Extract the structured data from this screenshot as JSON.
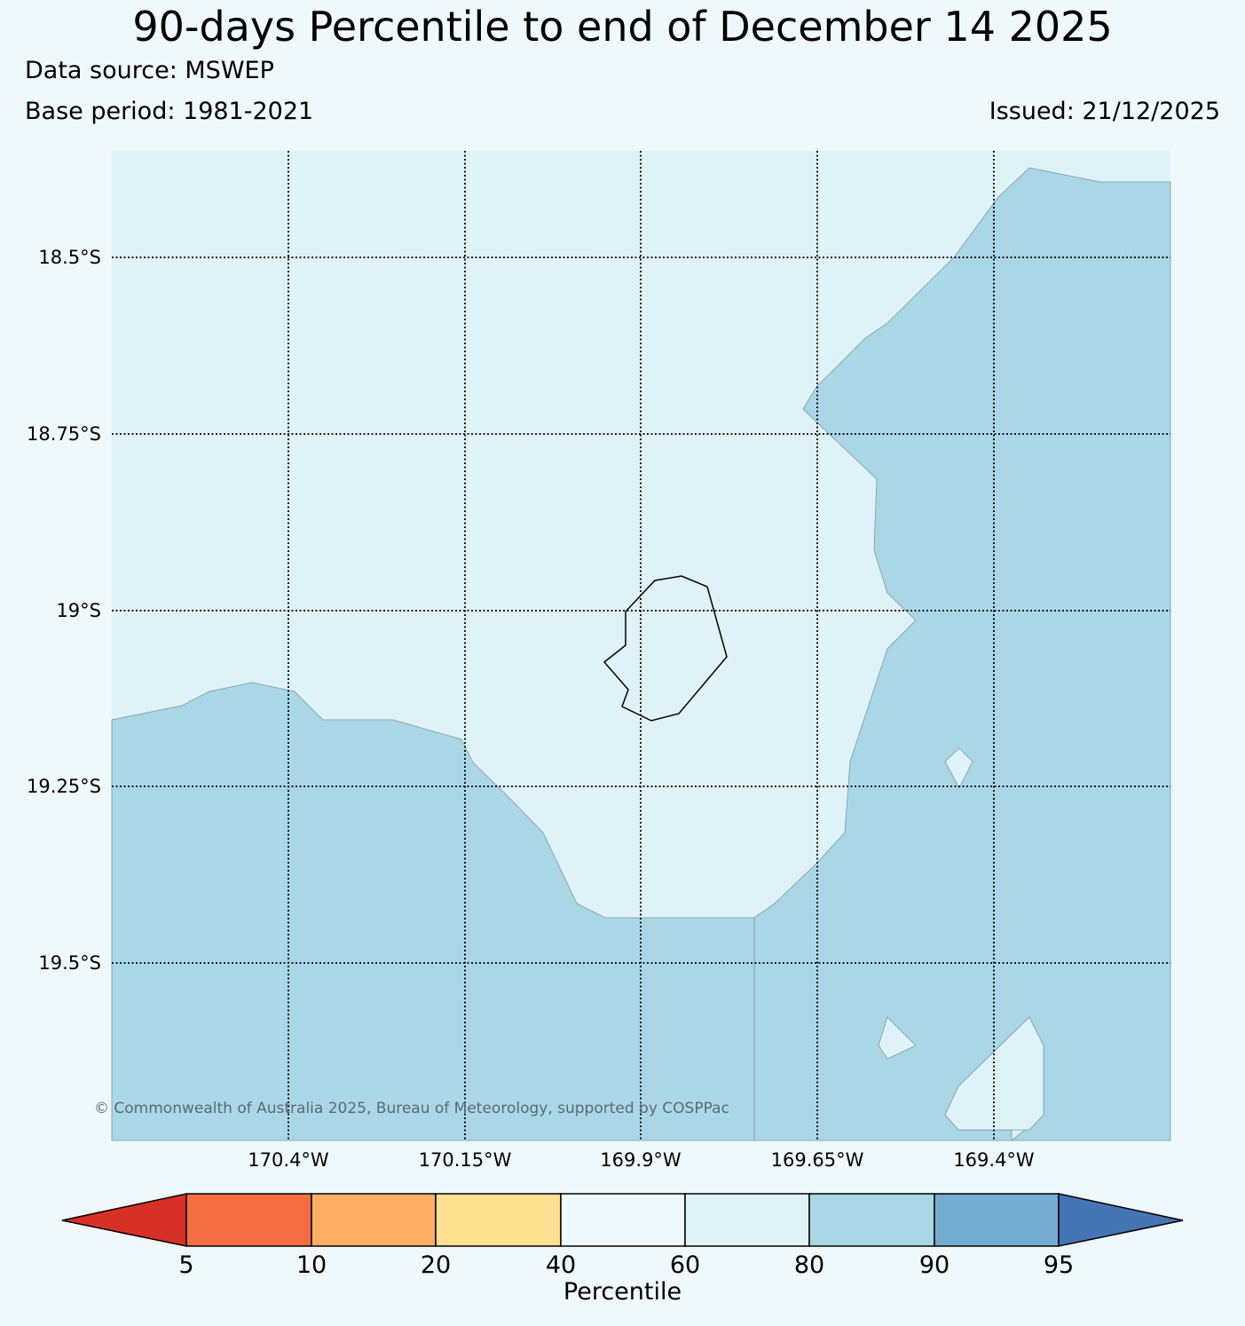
{
  "title": "90-days Percentile to end of December 14 2025",
  "data_source": "Data source: MSWEP",
  "base_period": "Base period: 1981-2021",
  "issued": "Issued: 21/12/2025",
  "copyright": "© Commonwealth of Australia 2025, Bureau of Meteorology, supported by COSPPac",
  "map": {
    "lat_labels": [
      "18.5°S",
      "18.75°S",
      "19°S",
      "19.25°S",
      "19.5°S"
    ],
    "lon_labels": [
      "170.4°W",
      "170.15°W",
      "169.9°W",
      "169.65°W",
      "169.4°W"
    ],
    "regions": [
      {
        "category": "60-80",
        "description": "background / central region",
        "color": "#dff2f8"
      },
      {
        "category": "80-90",
        "description": "south-west, south and east regions",
        "color": "#aad7e6"
      }
    ],
    "island": "Niue (outline)"
  },
  "colorbar": {
    "label": "Percentile",
    "ticks": [
      "5",
      "10",
      "20",
      "40",
      "60",
      "80",
      "90",
      "95"
    ],
    "colors": [
      "#d73027",
      "#f46d43",
      "#fdae61",
      "#fee090",
      "#eff8fb",
      "#dff2f8",
      "#aad7e6",
      "#74add1",
      "#4575b4"
    ]
  }
}
